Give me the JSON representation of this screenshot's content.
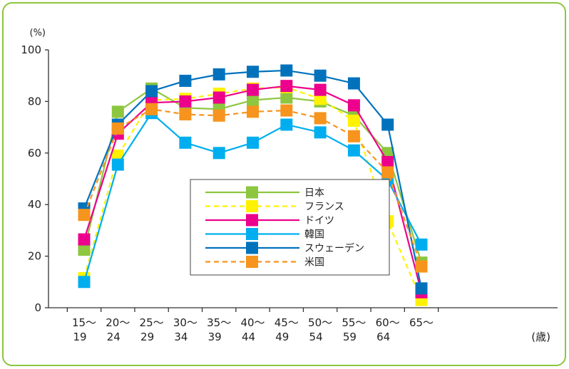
{
  "chart_data": {
    "type": "line",
    "title": "",
    "y_unit_label": "(%)",
    "x_unit_label": "(歳)",
    "ylim": [
      0,
      100
    ],
    "y_ticks": [
      0,
      20,
      40,
      60,
      80,
      100
    ],
    "categories": [
      {
        "line1": "15～",
        "line2": "19"
      },
      {
        "line1": "20～",
        "line2": "24"
      },
      {
        "line1": "25～",
        "line2": "29"
      },
      {
        "line1": "30～",
        "line2": "34"
      },
      {
        "line1": "35～",
        "line2": "39"
      },
      {
        "line1": "40～",
        "line2": "44"
      },
      {
        "line1": "45～",
        "line2": "49"
      },
      {
        "line1": "50～",
        "line2": "54"
      },
      {
        "line1": "55～",
        "line2": "59"
      },
      {
        "line1": "60～",
        "line2": "64"
      },
      {
        "line1": "65～",
        "line2": ""
      }
    ],
    "legend_placement": "center",
    "grid": false,
    "series": [
      {
        "name": "日本",
        "color": "#8dc63f",
        "dashed": false,
        "values": [
          22.5,
          76,
          85,
          77.5,
          77,
          80.5,
          81.5,
          80,
          74.5,
          60,
          17.5
        ]
      },
      {
        "name": "フランス",
        "color": "#fff200",
        "dashed": true,
        "values": [
          11.5,
          59,
          80.5,
          81,
          83,
          85,
          85.5,
          81,
          72.5,
          33.5,
          3
        ]
      },
      {
        "name": "ドイツ",
        "color": "#ec008c",
        "dashed": false,
        "values": [
          26.5,
          67.5,
          79.5,
          80,
          81.5,
          84.5,
          86,
          84.5,
          78.5,
          56.5,
          6
        ]
      },
      {
        "name": "韓国",
        "color": "#00aeef",
        "dashed": false,
        "values": [
          10,
          55.5,
          75.5,
          64,
          60,
          64,
          71,
          68,
          61,
          49.5,
          24.5
        ]
      },
      {
        "name": "スウェーデン",
        "color": "#0072bc",
        "dashed": false,
        "values": [
          38.5,
          71,
          84,
          88,
          90.5,
          91.5,
          92,
          90,
          87,
          71,
          7.5
        ]
      },
      {
        "name": "米国",
        "color": "#f7941d",
        "dashed": true,
        "values": [
          36,
          69.5,
          77,
          75,
          74.5,
          76,
          76.5,
          73.5,
          66.5,
          52.5,
          16
        ]
      }
    ]
  }
}
